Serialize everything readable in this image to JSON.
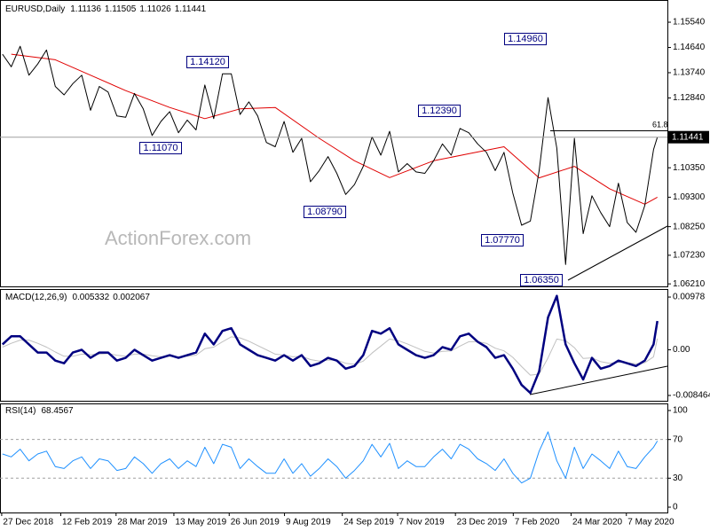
{
  "chart_data": [
    {
      "type": "line",
      "title": "EURUSD,Daily",
      "ohlc": [
        1.11136,
        1.11505,
        1.11026,
        1.11441
      ],
      "watermark": "ActionForex.com",
      "annotations": [
        "1.14120",
        "1.11070",
        "1.08790",
        "1.12390",
        "1.14960",
        "1.07770",
        "1.06350",
        "61.8"
      ],
      "xlim": [
        "2018-12-26",
        "2020-06-09"
      ],
      "ylim": [
        1.0612,
        1.163
      ],
      "yticks": [
        {
          "value": 1.1554,
          "label": "1.15540"
        },
        {
          "value": 1.1464,
          "label": "1.14640"
        },
        {
          "value": 1.1374,
          "label": "1.13740"
        },
        {
          "value": 1.1284,
          "label": "1.12840"
        },
        {
          "value": 1.1035,
          "label": "1.10350"
        },
        {
          "value": 1.093,
          "label": "1.09300"
        },
        {
          "value": 1.0825,
          "label": "1.08250"
        },
        {
          "value": 1.0723,
          "label": "1.07230"
        },
        {
          "value": 1.0621,
          "label": "1.06210"
        }
      ],
      "series": [
        {
          "color": "#000000",
          "x": [
            "2018-12-28",
            "2019-01-04",
            "2019-01-11",
            "2019-01-18",
            "2019-01-25",
            "2019-02-01",
            "2019-02-08",
            "2019-02-15",
            "2019-02-22",
            "2019-03-01",
            "2019-03-08",
            "2019-03-15",
            "2019-03-22",
            "2019-03-29",
            "2019-04-05",
            "2019-04-12",
            "2019-04-19",
            "2019-04-26",
            "2019-05-03",
            "2019-05-10",
            "2019-05-17",
            "2019-05-24",
            "2019-05-31",
            "2019-06-07",
            "2019-06-14",
            "2019-06-21",
            "2019-06-28",
            "2019-07-05",
            "2019-07-12",
            "2019-07-19",
            "2019-07-26",
            "2019-08-02",
            "2019-08-09",
            "2019-08-16",
            "2019-08-23",
            "2019-08-30",
            "2019-09-06",
            "2019-09-13",
            "2019-09-20",
            "2019-09-27",
            "2019-10-04",
            "2019-10-11",
            "2019-10-18",
            "2019-10-25",
            "2019-11-01",
            "2019-11-08",
            "2019-11-15",
            "2019-11-22",
            "2019-11-29",
            "2019-12-06",
            "2019-12-13",
            "2019-12-20",
            "2019-12-27",
            "2020-01-03",
            "2020-01-10",
            "2020-01-17",
            "2020-01-24",
            "2020-01-31",
            "2020-02-07",
            "2020-02-14",
            "2020-02-21",
            "2020-02-28",
            "2020-03-06",
            "2020-03-13",
            "2020-03-20",
            "2020-03-27",
            "2020-04-03",
            "2020-04-10",
            "2020-04-17",
            "2020-04-24",
            "2020-05-01",
            "2020-05-08",
            "2020-05-15",
            "2020-05-22",
            "2020-05-29",
            "2020-06-01"
          ],
          "values": [
            1.144,
            1.1395,
            1.1468,
            1.1365,
            1.1405,
            1.1455,
            1.1325,
            1.1295,
            1.1335,
            1.1365,
            1.124,
            1.1325,
            1.1305,
            1.122,
            1.1215,
            1.13,
            1.1245,
            1.115,
            1.12,
            1.1235,
            1.116,
            1.1205,
            1.117,
            1.133,
            1.121,
            1.137,
            1.137,
            1.1225,
            1.127,
            1.122,
            1.1125,
            1.111,
            1.12,
            1.109,
            1.114,
            1.0985,
            1.1025,
            1.1075,
            1.1015,
            1.094,
            1.0975,
            1.104,
            1.1145,
            1.108,
            1.1165,
            1.102,
            1.105,
            1.102,
            1.1015,
            1.106,
            1.112,
            1.108,
            1.1175,
            1.116,
            1.112,
            1.109,
            1.1025,
            1.109,
            1.0945,
            1.083,
            1.0845,
            1.1025,
            1.1285,
            1.1105,
            1.069,
            1.114,
            1.08,
            1.0935,
            1.0875,
            1.0825,
            1.098,
            1.084,
            1.0805,
            1.09,
            1.11,
            1.11441
          ]
        },
        {
          "color": "#e00000",
          "x": [
            "2019-01-04",
            "2019-02-08",
            "2019-03-08",
            "2019-04-05",
            "2019-05-10",
            "2019-06-07",
            "2019-07-05",
            "2019-08-02",
            "2019-09-06",
            "2019-10-04",
            "2019-11-01",
            "2019-12-06",
            "2020-01-03",
            "2020-01-31",
            "2020-02-28",
            "2020-03-27",
            "2020-04-24",
            "2020-05-22",
            "2020-06-01"
          ],
          "values": [
            1.144,
            1.142,
            1.1365,
            1.131,
            1.125,
            1.121,
            1.1245,
            1.125,
            1.114,
            1.106,
            1.1,
            1.106,
            1.1085,
            1.111,
            1.0999,
            1.104,
            1.096,
            1.0905,
            1.093
          ]
        }
      ]
    },
    {
      "type": "line",
      "title": "MACD(12,26,9)",
      "xlim": [
        "2018-12-26",
        "2020-06-09"
      ],
      "ylim": [
        -0.00945,
        0.0111
      ],
      "yticks": [
        0.00978,
        {
          "value": 0,
          "label": "0.00"
        },
        -0.008464
      ],
      "series": [
        {
          "color": "#000080",
          "width": 2.5,
          "x": [
            "2018-12-28",
            "2019-01-04",
            "2019-01-11",
            "2019-01-18",
            "2019-01-25",
            "2019-02-01",
            "2019-02-08",
            "2019-02-15",
            "2019-02-22",
            "2019-03-01",
            "2019-03-08",
            "2019-03-15",
            "2019-03-22",
            "2019-03-29",
            "2019-04-05",
            "2019-04-12",
            "2019-04-19",
            "2019-04-26",
            "2019-05-03",
            "2019-05-10",
            "2019-05-17",
            "2019-05-24",
            "2019-05-31",
            "2019-06-07",
            "2019-06-14",
            "2019-06-21",
            "2019-06-28",
            "2019-07-05",
            "2019-07-12",
            "2019-07-19",
            "2019-07-26",
            "2019-08-02",
            "2019-08-09",
            "2019-08-16",
            "2019-08-23",
            "2019-08-30",
            "2019-09-06",
            "2019-09-13",
            "2019-09-20",
            "2019-09-27",
            "2019-10-04",
            "2019-10-11",
            "2019-10-18",
            "2019-10-25",
            "2019-11-01",
            "2019-11-08",
            "2019-11-15",
            "2019-11-22",
            "2019-11-29",
            "2019-12-06",
            "2019-12-13",
            "2019-12-20",
            "2019-12-27",
            "2020-01-03",
            "2020-01-10",
            "2020-01-17",
            "2020-01-24",
            "2020-01-31",
            "2020-02-07",
            "2020-02-14",
            "2020-02-21",
            "2020-02-28",
            "2020-03-06",
            "2020-03-13",
            "2020-03-20",
            "2020-03-27",
            "2020-04-03",
            "2020-04-10",
            "2020-04-17",
            "2020-04-24",
            "2020-05-01",
            "2020-05-08",
            "2020-05-15",
            "2020-05-22",
            "2020-05-29",
            "2020-06-01"
          ],
          "values": [
            0.001,
            0.0025,
            0.0025,
            0.001,
            -0.0005,
            -0.0005,
            -0.002,
            -0.0025,
            -0.0005,
            0,
            -0.0015,
            -0.0005,
            -0.0005,
            -0.002,
            -0.0015,
            0,
            -0.001,
            -0.002,
            -0.0015,
            -0.001,
            -0.0015,
            -0.001,
            -0.0005,
            0.003,
            0.001,
            0.0035,
            0.004,
            0.001,
            0,
            -0.001,
            -0.0015,
            -0.002,
            -0.001,
            -0.002,
            -0.001,
            -0.003,
            -0.0025,
            -0.0015,
            -0.002,
            -0.0035,
            -0.003,
            -0.001,
            0.0035,
            0.003,
            0.004,
            0.001,
            0,
            -0.001,
            -0.0015,
            -0.001,
            0.0005,
            0,
            0.0025,
            0.003,
            0.0015,
            0.0005,
            -0.0015,
            -0.001,
            -0.0035,
            -0.0065,
            -0.008,
            -0.004,
            0.006,
            0.01,
            0.001,
            -0.0025,
            -0.0055,
            -0.0015,
            -0.0035,
            -0.003,
            -0.002,
            -0.0025,
            -0.003,
            -0.002,
            0.001,
            0.005332
          ]
        },
        {
          "color": "#c0c0c0",
          "width": 1,
          "x": [
            "2018-12-28",
            "2019-01-04",
            "2019-01-11",
            "2019-01-18",
            "2019-01-25",
            "2019-02-01",
            "2019-02-08",
            "2019-02-15",
            "2019-02-22",
            "2019-03-01",
            "2019-03-08",
            "2019-03-15",
            "2019-03-22",
            "2019-03-29",
            "2019-04-05",
            "2019-04-12",
            "2019-04-19",
            "2019-04-26",
            "2019-05-03",
            "2019-05-10",
            "2019-05-17",
            "2019-05-24",
            "2019-05-31",
            "2019-06-07",
            "2019-06-14",
            "2019-06-21",
            "2019-06-28",
            "2019-07-05",
            "2019-07-12",
            "2019-07-19",
            "2019-07-26",
            "2019-08-02",
            "2019-08-09",
            "2019-08-16",
            "2019-08-23",
            "2019-08-30",
            "2019-09-06",
            "2019-09-13",
            "2019-09-20",
            "2019-09-27",
            "2019-10-04",
            "2019-10-11",
            "2019-10-18",
            "2019-10-25",
            "2019-11-01",
            "2019-11-08",
            "2019-11-15",
            "2019-11-22",
            "2019-11-29",
            "2019-12-06",
            "2019-12-13",
            "2019-12-20",
            "2019-12-27",
            "2020-01-03",
            "2020-01-10",
            "2020-01-17",
            "2020-01-24",
            "2020-01-31",
            "2020-02-07",
            "2020-02-14",
            "2020-02-21",
            "2020-02-28",
            "2020-03-06",
            "2020-03-13",
            "2020-03-20",
            "2020-03-27",
            "2020-04-03",
            "2020-04-10",
            "2020-04-17",
            "2020-04-24",
            "2020-05-01",
            "2020-05-08",
            "2020-05-15",
            "2020-05-22",
            "2020-05-29",
            "2020-06-01"
          ],
          "values": [
            0.0005,
            0.0012,
            0.0018,
            0.0018,
            0.0012,
            0.0005,
            -0.0004,
            -0.0012,
            -0.0012,
            -0.0008,
            -0.0009,
            -0.0008,
            -0.0007,
            -0.001,
            -0.0012,
            -0.0008,
            -0.0008,
            -0.0011,
            -0.0013,
            -0.0012,
            -0.0013,
            -0.0012,
            -0.001,
            0.0002,
            0.0005,
            0.0015,
            0.0024,
            0.0022,
            0.0016,
            0.0008,
            0,
            -0.0008,
            -0.001,
            -0.0013,
            -0.0012,
            -0.0018,
            -0.0021,
            -0.0019,
            -0.0019,
            -0.0025,
            -0.0027,
            -0.0021,
            -0.0006,
            0.0007,
            0.002,
            0.0017,
            0.0011,
            0.0004,
            -0.0003,
            -0.0006,
            -0.0003,
            -0.0002,
            0.0007,
            0.0015,
            0.0015,
            0.0012,
            0.0003,
            -0.0002,
            -0.0014,
            -0.0031,
            -0.0047,
            -0.0045,
            -0.0015,
            0.002,
            0.0017,
            0.0004,
            -0.0016,
            -0.0015,
            -0.0022,
            -0.0025,
            -0.0023,
            -0.0024,
            -0.0026,
            -0.0024,
            -0.0013,
            0.002067
          ]
        }
      ]
    },
    {
      "type": "line",
      "title": "RSI(14)",
      "xlim": [
        "2018-12-26",
        "2020-06-09"
      ],
      "ylim": [
        -5.5,
        106.4
      ],
      "yticks": [
        100,
        70,
        30,
        0
      ],
      "levels": [
        70,
        30
      ],
      "xticks": [
        {
          "value": "2018-12-27",
          "label": "27 Dec 2018"
        },
        {
          "value": "2019-02-12",
          "label": "12 Feb 2019"
        },
        {
          "value": "2019-03-28",
          "label": "28 Mar 2019"
        },
        {
          "value": "2019-05-13",
          "label": "13 May 2019"
        },
        {
          "value": "2019-06-26",
          "label": "26 Jun 2019"
        },
        {
          "value": "2019-08-09",
          "label": "9 Aug 2019"
        },
        {
          "value": "2019-09-24",
          "label": "24 Sep 2019"
        },
        {
          "value": "2019-11-07",
          "label": "7 Nov 2019"
        },
        {
          "value": "2019-12-23",
          "label": "23 Dec 2019"
        },
        {
          "value": "2020-02-07",
          "label": "7 Feb 2020"
        },
        {
          "value": "2020-03-24",
          "label": "24 Mar 2020"
        },
        {
          "value": "2020-05-07",
          "label": "7 May 2020"
        }
      ],
      "series": [
        {
          "color": "#1e90ff",
          "width": 1,
          "x": [
            "2018-12-28",
            "2019-01-04",
            "2019-01-11",
            "2019-01-18",
            "2019-01-25",
            "2019-02-01",
            "2019-02-08",
            "2019-02-15",
            "2019-02-22",
            "2019-03-01",
            "2019-03-08",
            "2019-03-15",
            "2019-03-22",
            "2019-03-29",
            "2019-04-05",
            "2019-04-12",
            "2019-04-19",
            "2019-04-26",
            "2019-05-03",
            "2019-05-10",
            "2019-05-17",
            "2019-05-24",
            "2019-05-31",
            "2019-06-07",
            "2019-06-14",
            "2019-06-21",
            "2019-06-28",
            "2019-07-05",
            "2019-07-12",
            "2019-07-19",
            "2019-07-26",
            "2019-08-02",
            "2019-08-09",
            "2019-08-16",
            "2019-08-23",
            "2019-08-30",
            "2019-09-06",
            "2019-09-13",
            "2019-09-20",
            "2019-09-27",
            "2019-10-04",
            "2019-10-11",
            "2019-10-18",
            "2019-10-25",
            "2019-11-01",
            "2019-11-08",
            "2019-11-15",
            "2019-11-22",
            "2019-11-29",
            "2019-12-06",
            "2019-12-13",
            "2019-12-20",
            "2019-12-27",
            "2020-01-03",
            "2020-01-10",
            "2020-01-17",
            "2020-01-24",
            "2020-01-31",
            "2020-02-07",
            "2020-02-14",
            "2020-02-21",
            "2020-02-28",
            "2020-03-06",
            "2020-03-13",
            "2020-03-20",
            "2020-03-27",
            "2020-04-03",
            "2020-04-10",
            "2020-04-17",
            "2020-04-24",
            "2020-05-01",
            "2020-05-08",
            "2020-05-15",
            "2020-05-22",
            "2020-05-29",
            "2020-06-01"
          ],
          "values": [
            55,
            52,
            60,
            48,
            55,
            58,
            42,
            40,
            48,
            52,
            40,
            50,
            48,
            38,
            40,
            52,
            45,
            35,
            45,
            50,
            40,
            48,
            42,
            62,
            45,
            65,
            62,
            40,
            50,
            42,
            35,
            35,
            50,
            35,
            45,
            32,
            40,
            50,
            42,
            30,
            38,
            48,
            65,
            52,
            66,
            40,
            48,
            42,
            42,
            52,
            60,
            50,
            65,
            60,
            50,
            45,
            38,
            50,
            35,
            25,
            30,
            58,
            78,
            48,
            30,
            62,
            40,
            55,
            48,
            40,
            58,
            42,
            40,
            52,
            62,
            68.4567
          ]
        }
      ]
    }
  ]
}
